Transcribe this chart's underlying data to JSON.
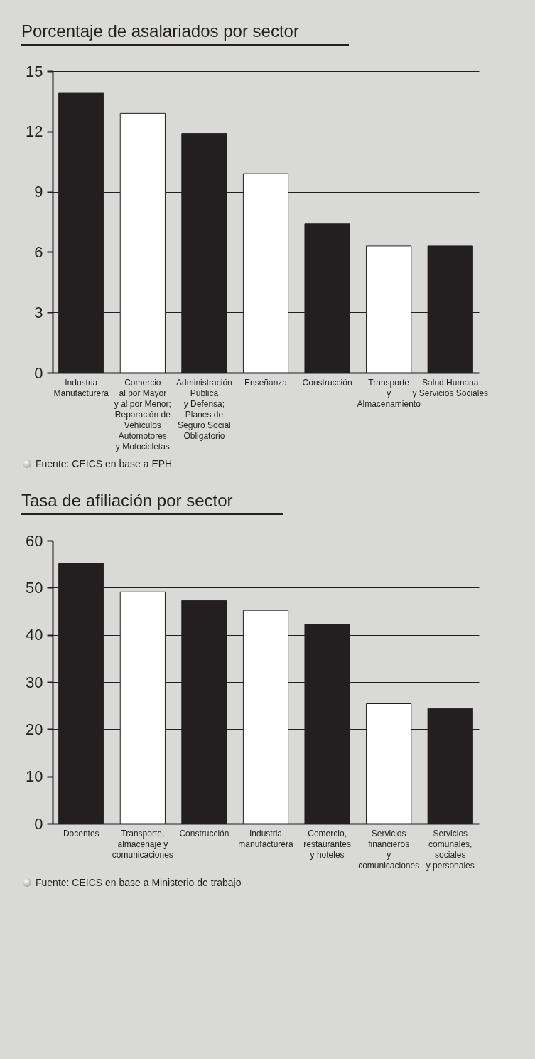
{
  "chart_data": [
    {
      "type": "bar",
      "title": "Porcentaje de asalariados por sector",
      "categories": [
        "Industria\nManufacturera",
        "Comercio\nal por Mayor\ny al por Menor;\nReparación de\nVehículos\nAutomotores\ny Motocicletas",
        "Administración\nPública\ny Defensa;\nPlanes de\nSeguro Social\nObligatorio",
        "Enseñanza",
        "Construcción",
        "Transporte\ny\nAlmacenamiento",
        "Salud Humana\ny Servicios Sociales"
      ],
      "values": [
        13.9,
        12.9,
        11.9,
        9.9,
        7.4,
        6.3,
        6.3
      ],
      "colors": [
        "#231f20",
        "#ffffff",
        "#231f20",
        "#ffffff",
        "#231f20",
        "#ffffff",
        "#231f20"
      ],
      "ylim": [
        0,
        15
      ],
      "yticks": [
        0,
        3,
        6,
        9,
        12,
        15
      ],
      "grid": "y",
      "annotations": [
        "Fuente: CEICS en base a EPH"
      ]
    },
    {
      "type": "bar",
      "title": "Tasa de afiliación por sector",
      "categories": [
        "Docentes",
        "Transporte,\nalmacenaje y\ncomunicaciones",
        "Construcción",
        "Industria\nmanufacturera",
        "Comercio,\nrestaurantes\ny hoteles",
        "Servicios\nfinancieros\ny\ncomunicaciones",
        "Servicios\ncomunales,\nsociales\ny personales"
      ],
      "values": [
        55.1,
        49.1,
        47.3,
        45.2,
        42.2,
        25.4,
        24.4
      ],
      "colors": [
        "#231f20",
        "#ffffff",
        "#231f20",
        "#ffffff",
        "#231f20",
        "#ffffff",
        "#231f20"
      ],
      "ylim": [
        0,
        60
      ],
      "yticks": [
        0,
        10,
        20,
        30,
        40,
        50,
        60
      ],
      "grid": "y",
      "annotations": [
        "Fuente: CEICS en base a Ministerio de trabajo"
      ]
    }
  ]
}
